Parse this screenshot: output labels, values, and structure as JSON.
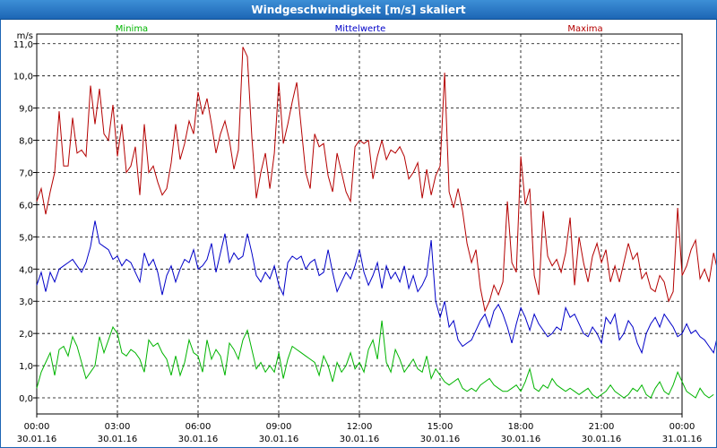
{
  "window": {
    "title": "Windgeschwindigkeit [m/s] skaliert"
  },
  "chart_data": {
    "type": "line",
    "title": "Windgeschwindigkeit [m/s] skaliert",
    "ylabel": "m/s",
    "xlabel": "",
    "ylim": [
      -0.5,
      11.3
    ],
    "xlim": [
      0,
      24
    ],
    "grid": true,
    "legend_position": "top",
    "y_ticks": [
      "0,0",
      "1,0",
      "2,0",
      "3,0",
      "4,0",
      "5,0",
      "6,0",
      "7,0",
      "8,0",
      "9,0",
      "10,0",
      "11,0"
    ],
    "x_ticks": [
      {
        "time": "00:00",
        "date": "30.01.16"
      },
      {
        "time": "03:00",
        "date": "30.01.16"
      },
      {
        "time": "06:00",
        "date": "30.01.16"
      },
      {
        "time": "09:00",
        "date": "30.01.16"
      },
      {
        "time": "12:00",
        "date": "30.01.16"
      },
      {
        "time": "15:00",
        "date": "30.01.16"
      },
      {
        "time": "18:00",
        "date": "30.01.16"
      },
      {
        "time": "21:00",
        "date": "30.01.16"
      },
      {
        "time": "00:00",
        "date": "31.01.16"
      }
    ],
    "x_unit": "hours",
    "x_step": 0.1667,
    "series": [
      {
        "name": "Minima",
        "color": "#00b400",
        "values": [
          0.3,
          0.8,
          1.1,
          1.4,
          0.7,
          1.5,
          1.6,
          1.3,
          1.9,
          1.6,
          1.1,
          0.6,
          0.8,
          1.0,
          1.9,
          1.4,
          1.8,
          2.2,
          2.0,
          1.4,
          1.3,
          1.5,
          1.4,
          1.2,
          0.8,
          1.8,
          1.6,
          1.7,
          1.4,
          1.2,
          0.7,
          1.3,
          0.7,
          1.1,
          1.8,
          1.4,
          1.3,
          0.8,
          1.8,
          1.2,
          1.5,
          1.3,
          0.7,
          1.7,
          1.5,
          1.2,
          1.8,
          2.1,
          1.5,
          0.9,
          1.1,
          0.8,
          1.0,
          0.8,
          1.4,
          0.6,
          1.2,
          1.6,
          1.5,
          1.4,
          1.3,
          1.2,
          1.1,
          0.7,
          1.3,
          1.0,
          0.5,
          1.1,
          0.8,
          1.0,
          1.4,
          0.9,
          1.1,
          0.8,
          1.5,
          1.8,
          1.2,
          2.4,
          1.1,
          0.8,
          1.5,
          1.2,
          0.8,
          1.0,
          1.2,
          0.9,
          0.8,
          1.3,
          0.6,
          0.9,
          0.7,
          0.5,
          0.4,
          0.5,
          0.6,
          0.3,
          0.2,
          0.3,
          0.2,
          0.4,
          0.5,
          0.6,
          0.4,
          0.3,
          0.2,
          0.2,
          0.3,
          0.4,
          0.2,
          0.5,
          0.9,
          0.3,
          0.2,
          0.4,
          0.3,
          0.6,
          0.4,
          0.3,
          0.2,
          0.3,
          0.2,
          0.1,
          0.2,
          0.3,
          0.1,
          0.0,
          0.1,
          0.2,
          0.4,
          0.2,
          0.1,
          0.0,
          0.1,
          0.3,
          0.2,
          0.4,
          0.1,
          0.0,
          0.3,
          0.5,
          0.2,
          0.1,
          0.4,
          0.8,
          0.5,
          0.2,
          0.1,
          0.0,
          0.3,
          0.1,
          0.0,
          0.1
        ]
      },
      {
        "name": "Mittelwerte",
        "color": "#0000c8",
        "values": [
          3.5,
          3.9,
          3.3,
          3.9,
          3.6,
          4.0,
          4.1,
          4.2,
          4.3,
          4.1,
          3.9,
          4.2,
          4.7,
          5.5,
          4.8,
          4.7,
          4.6,
          4.3,
          4.4,
          4.1,
          4.3,
          4.2,
          3.9,
          3.6,
          4.5,
          4.1,
          4.3,
          3.9,
          3.2,
          3.8,
          4.1,
          3.6,
          4.0,
          4.3,
          4.2,
          4.6,
          4.0,
          4.1,
          4.3,
          4.8,
          3.9,
          4.5,
          5.1,
          4.2,
          4.5,
          4.3,
          4.4,
          5.1,
          4.5,
          3.8,
          3.6,
          3.9,
          3.7,
          4.1,
          3.5,
          3.2,
          4.2,
          4.4,
          4.3,
          4.4,
          4.0,
          4.2,
          4.3,
          3.8,
          3.9,
          4.6,
          3.9,
          3.3,
          3.6,
          3.9,
          3.7,
          4.1,
          4.6,
          3.9,
          3.5,
          3.8,
          4.2,
          3.4,
          4.1,
          3.7,
          3.9,
          3.6,
          4.1,
          3.4,
          3.8,
          3.3,
          3.5,
          3.8,
          4.9,
          3.0,
          2.5,
          3.0,
          2.2,
          2.4,
          1.8,
          1.6,
          1.7,
          1.8,
          2.1,
          2.4,
          2.6,
          2.2,
          2.7,
          2.9,
          2.6,
          2.2,
          1.7,
          2.3,
          2.8,
          2.5,
          2.1,
          2.6,
          2.3,
          2.1,
          1.9,
          2.0,
          2.2,
          2.1,
          2.8,
          2.5,
          2.6,
          2.3,
          2.0,
          1.9,
          2.2,
          2.0,
          1.7,
          2.5,
          2.3,
          2.6,
          1.8,
          2.0,
          2.4,
          2.2,
          1.7,
          1.4,
          2.0,
          2.3,
          2.5,
          2.2,
          2.6,
          2.4,
          2.2,
          1.9,
          2.0,
          2.3,
          2.0,
          2.1,
          1.9,
          1.8,
          1.6,
          1.4,
          2.0,
          1.8
        ]
      },
      {
        "name": "Maxima",
        "color": "#b40000",
        "values": [
          6.1,
          6.5,
          5.7,
          6.4,
          7.0,
          8.9,
          7.2,
          7.2,
          8.7,
          7.6,
          7.7,
          7.5,
          9.7,
          8.5,
          9.6,
          8.2,
          8.0,
          9.1,
          7.5,
          8.5,
          7.0,
          7.2,
          7.8,
          6.3,
          8.5,
          7.0,
          7.2,
          6.7,
          6.3,
          6.5,
          7.3,
          8.5,
          7.4,
          7.9,
          8.6,
          8.2,
          9.5,
          8.8,
          9.3,
          8.5,
          7.6,
          8.2,
          8.6,
          8.0,
          7.1,
          7.7,
          10.9,
          10.6,
          8.1,
          6.2,
          7.0,
          7.6,
          6.5,
          7.6,
          9.8,
          7.9,
          8.5,
          9.2,
          9.8,
          8.4,
          7.0,
          6.5,
          8.2,
          7.8,
          7.9,
          6.9,
          6.4,
          7.6,
          7.0,
          6.4,
          6.1,
          7.8,
          8.0,
          7.9,
          8.0,
          6.8,
          7.5,
          8.0,
          7.4,
          7.7,
          7.6,
          7.8,
          7.5,
          6.8,
          7.0,
          7.3,
          6.2,
          7.1,
          6.3,
          6.9,
          7.2,
          10.1,
          6.4,
          5.9,
          6.5,
          5.8,
          4.8,
          4.2,
          4.6,
          3.4,
          2.7,
          3.0,
          3.5,
          3.2,
          3.6,
          6.1,
          4.2,
          3.9,
          7.5,
          6.0,
          6.5,
          3.8,
          3.2,
          5.8,
          4.4,
          4.1,
          4.3,
          3.9,
          4.5,
          5.6,
          3.5,
          5.0,
          4.2,
          3.6,
          4.4,
          4.8,
          4.2,
          4.6,
          3.6,
          4.1,
          3.6,
          4.2,
          4.8,
          4.3,
          4.5,
          3.7,
          3.9,
          3.4,
          3.3,
          3.8,
          3.6,
          3.0,
          3.3,
          5.9,
          3.8,
          4.1,
          4.6,
          4.9,
          3.7,
          4.0,
          3.6,
          4.5,
          3.9,
          3.4,
          4.8,
          3.7
        ]
      }
    ]
  }
}
